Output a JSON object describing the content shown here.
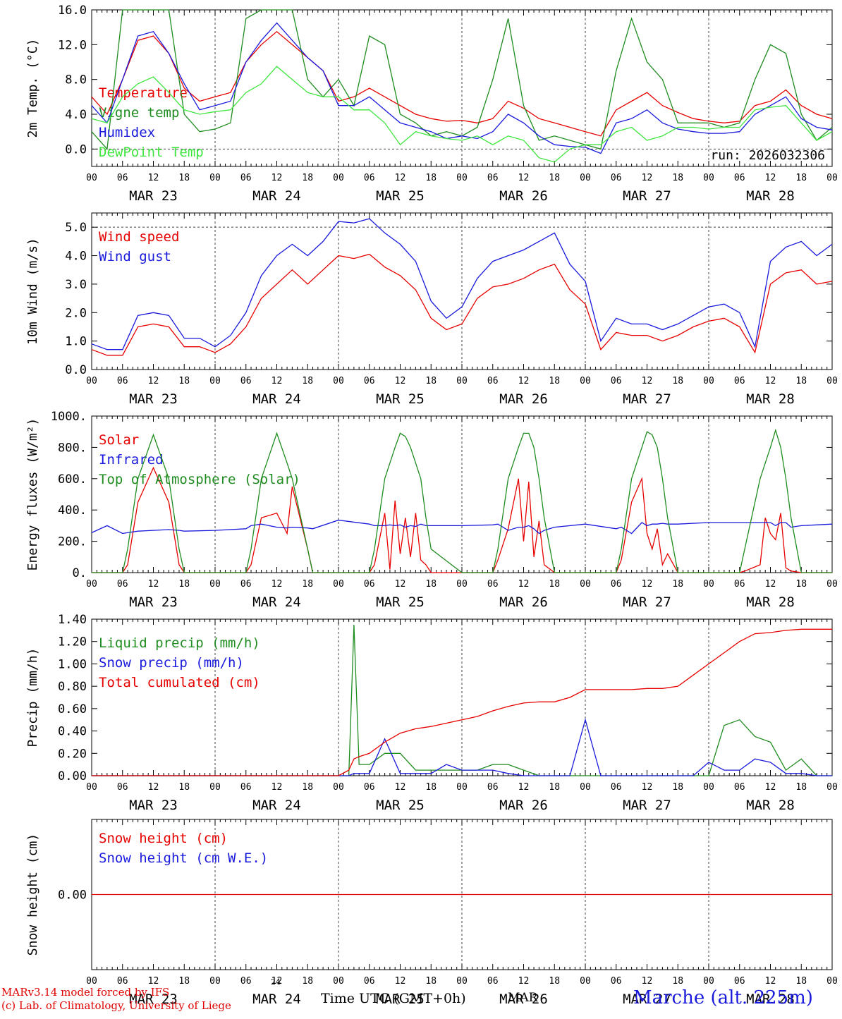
{
  "footer": {
    "model_line": "MARv3.14 model forced by IFS",
    "credit_line": "(c) Lab. of Climatology, University of Liege",
    "time_label": "Time UTC (GMT+0h)",
    "month_label": "MAR",
    "day_label": "24",
    "station_label": "Marche (alt. 225m)"
  },
  "colors": {
    "red": "#e60000",
    "blue": "#1a1adc",
    "green": "#1f8c1f",
    "lightgreen": "#3ee63e",
    "grid": "#444444"
  },
  "x_ticks": [
    "00",
    "06",
    "12",
    "18",
    "00",
    "06",
    "12",
    "18",
    "00",
    "06",
    "12",
    "18",
    "00",
    "06",
    "12",
    "18",
    "00",
    "06",
    "12",
    "18",
    "00",
    "06",
    "12",
    "18",
    "00"
  ],
  "day_labels": [
    "MAR 23",
    "MAR 24",
    "MAR 25",
    "MAR 26",
    "MAR 27",
    "MAR 28"
  ],
  "chart_data": [
    {
      "type": "line",
      "id": "temp",
      "ylabel": "2m Temp. (°C)",
      "ylim": [
        -2,
        16
      ],
      "yticks": [
        "16.0",
        "12.0",
        "8.0",
        "4.0",
        "0.0"
      ],
      "ytick_values": [
        16,
        12,
        8,
        4,
        0
      ],
      "dashed_y": [
        0
      ],
      "annotation": "run: 2026032306",
      "x_hours": [
        0,
        3,
        6,
        9,
        12,
        15,
        18,
        21,
        24,
        27,
        30,
        33,
        36,
        39,
        42,
        45,
        48,
        51,
        54,
        57,
        60,
        63,
        66,
        69,
        72,
        75,
        78,
        81,
        84,
        87,
        90,
        93,
        96,
        99,
        102,
        105,
        108,
        111,
        114,
        117,
        120,
        123,
        126,
        129,
        132,
        135,
        138,
        141,
        144
      ],
      "series": [
        {
          "name": "Temperature",
          "color": "red",
          "values": [
            6,
            4,
            8,
            12.5,
            13,
            11,
            7,
            5.5,
            6,
            6.5,
            10,
            12,
            13.5,
            12,
            10.5,
            9,
            5.5,
            6,
            7,
            6,
            5,
            4,
            3.5,
            3.2,
            3.3,
            3,
            3.5,
            5.5,
            4.7,
            3.5,
            3,
            2.5,
            2,
            1.5,
            4.5,
            5.5,
            6.5,
            5,
            4.2,
            3.5,
            3.2,
            3,
            3.2,
            5,
            5.5,
            6.8,
            5,
            4,
            3.5
          ]
        },
        {
          "name": "Vigne temp",
          "color": "green",
          "values": [
            2,
            0,
            16,
            16,
            16,
            16,
            4,
            2,
            2.3,
            3,
            15,
            16,
            16,
            16,
            8,
            6,
            8,
            5,
            13,
            12,
            4,
            3,
            1.5,
            2,
            1.5,
            2.5,
            8,
            15,
            5,
            1,
            1.5,
            1,
            0.5,
            0,
            9,
            15,
            10,
            8,
            3,
            3,
            3,
            2.5,
            3,
            8,
            12,
            11,
            4,
            1,
            2.5
          ]
        },
        {
          "name": "Humidex",
          "color": "blue",
          "values": [
            5,
            3,
            8,
            13,
            13.5,
            11,
            7.5,
            4.5,
            5,
            5.5,
            10,
            12.5,
            14.5,
            12.5,
            10.5,
            9,
            5,
            5,
            6,
            4.5,
            3,
            2.5,
            2,
            1.2,
            1.5,
            1.2,
            2,
            4,
            3,
            1.5,
            0.5,
            0.3,
            0.2,
            -0.5,
            3,
            3.5,
            4.5,
            3,
            2.3,
            2,
            1.8,
            1.8,
            2,
            4,
            5,
            6,
            3.5,
            2.5,
            2.2
          ]
        },
        {
          "name": "DewPoint Temp",
          "color": "lightgreen",
          "values": [
            3.5,
            3,
            6,
            7.5,
            8.3,
            6.5,
            4.5,
            4,
            4.3,
            4.5,
            6.5,
            7.5,
            9.5,
            8,
            6.5,
            6,
            6,
            4.5,
            4.5,
            3,
            0.5,
            2,
            1.5,
            1.2,
            1,
            1.5,
            0.5,
            1.5,
            1,
            -1,
            -1.5,
            0,
            0.5,
            0.5,
            2,
            2.5,
            1,
            1.5,
            2.5,
            2.5,
            2.3,
            2.5,
            2.5,
            4.5,
            4.8,
            5,
            3,
            1,
            2
          ]
        }
      ]
    },
    {
      "type": "line",
      "id": "wind",
      "ylabel": "10m Wind (m/s)",
      "ylim": [
        0,
        5.5
      ],
      "yticks": [
        "5.0",
        "4.0",
        "3.0",
        "2.0",
        "1.0",
        "0.0"
      ],
      "ytick_values": [
        5,
        4,
        3,
        2,
        1,
        0
      ],
      "dashed_y": [
        5
      ],
      "x_hours": [
        0,
        3,
        6,
        9,
        12,
        15,
        18,
        21,
        24,
        27,
        30,
        33,
        36,
        39,
        42,
        45,
        48,
        51,
        54,
        57,
        60,
        63,
        66,
        69,
        72,
        75,
        78,
        81,
        84,
        87,
        90,
        93,
        96,
        99,
        102,
        105,
        108,
        111,
        114,
        117,
        120,
        123,
        126,
        129,
        132,
        135,
        138,
        141,
        144
      ],
      "series": [
        {
          "name": "Wind speed",
          "color": "red",
          "values": [
            0.7,
            0.5,
            0.5,
            1.5,
            1.6,
            1.5,
            0.8,
            0.8,
            0.6,
            0.9,
            1.5,
            2.5,
            3,
            3.5,
            3,
            3.5,
            4,
            3.9,
            4.05,
            3.6,
            3.3,
            2.8,
            1.8,
            1.4,
            1.6,
            2.5,
            2.9,
            3,
            3.2,
            3.5,
            3.7,
            2.8,
            2.3,
            0.7,
            1.3,
            1.2,
            1.2,
            1,
            1.2,
            1.5,
            1.7,
            1.8,
            1.5,
            0.6,
            3,
            3.4,
            3.5,
            3,
            3.1
          ]
        },
        {
          "name": "Wind gust",
          "color": "blue",
          "values": [
            0.9,
            0.7,
            0.7,
            1.9,
            2,
            1.9,
            1.1,
            1.1,
            0.8,
            1.2,
            2,
            3.3,
            4,
            4.4,
            4,
            4.5,
            5.2,
            5.15,
            5.3,
            4.8,
            4.4,
            3.8,
            2.4,
            1.8,
            2.2,
            3.2,
            3.8,
            4,
            4.2,
            4.5,
            4.8,
            3.7,
            3.1,
            1.0,
            1.8,
            1.6,
            1.6,
            1.4,
            1.6,
            1.9,
            2.2,
            2.3,
            2.0,
            0.8,
            3.8,
            4.3,
            4.5,
            4.0,
            4.4
          ]
        }
      ]
    },
    {
      "type": "line",
      "id": "energy",
      "ylabel": "Energy fluxes (W/m²)",
      "ylim": [
        0,
        1000
      ],
      "yticks": [
        "1000.",
        "800.",
        "600.",
        "400.",
        "200.",
        "0."
      ],
      "ytick_values": [
        1000,
        800,
        600,
        400,
        200,
        0
      ],
      "dashed_y": [],
      "x_hours": [
        0,
        3,
        6,
        7,
        9,
        12,
        15,
        17,
        18,
        24,
        30,
        31,
        33,
        36,
        38,
        39,
        42,
        43,
        48,
        54,
        55,
        57,
        58,
        59,
        60,
        61,
        62,
        63,
        64,
        65,
        66,
        72,
        78,
        79,
        81,
        83,
        84,
        85,
        86,
        87,
        88,
        90,
        96,
        102,
        103,
        105,
        107,
        108,
        109,
        110,
        111,
        112,
        114,
        120,
        126,
        127,
        130,
        131,
        132,
        133,
        134,
        135,
        136,
        138,
        144
      ],
      "series": [
        {
          "name": "Solar",
          "color": "red",
          "values": [
            0,
            0,
            0,
            50,
            450,
            670,
            450,
            50,
            0,
            0,
            0,
            50,
            350,
            380,
            250,
            550,
            150,
            0,
            0,
            0,
            50,
            380,
            20,
            460,
            120,
            350,
            100,
            380,
            80,
            50,
            0,
            0,
            0,
            80,
            280,
            600,
            200,
            580,
            100,
            330,
            50,
            0,
            0,
            0,
            80,
            450,
            600,
            250,
            150,
            280,
            50,
            120,
            0,
            0,
            0,
            10,
            50,
            350,
            250,
            210,
            380,
            30,
            10,
            0,
            0
          ]
        },
        {
          "name": "Infrared",
          "color": "blue",
          "values": [
            255,
            300,
            250,
            255,
            265,
            270,
            275,
            270,
            265,
            270,
            280,
            300,
            310,
            290,
            285,
            290,
            285,
            280,
            335,
            310,
            300,
            300,
            305,
            300,
            305,
            290,
            300,
            295,
            310,
            300,
            300,
            300,
            305,
            310,
            270,
            290,
            290,
            300,
            280,
            250,
            270,
            290,
            310,
            280,
            290,
            250,
            320,
            300,
            310,
            310,
            315,
            310,
            310,
            320,
            320,
            320,
            320,
            320,
            320,
            300,
            320,
            320,
            290,
            300,
            310
          ]
        },
        {
          "name": "Top of Atmosphere (Solar)",
          "color": "green",
          "values": [
            0,
            0,
            0,
            150,
            600,
            880,
            600,
            150,
            0,
            0,
            0,
            150,
            600,
            890,
            700,
            600,
            150,
            0,
            0,
            0,
            150,
            600,
            700,
            800,
            890,
            870,
            800,
            700,
            600,
            350,
            150,
            0,
            0,
            150,
            600,
            800,
            890,
            890,
            800,
            600,
            350,
            0,
            0,
            0,
            150,
            600,
            800,
            900,
            880,
            800,
            600,
            350,
            0,
            0,
            0,
            150,
            600,
            700,
            800,
            910,
            800,
            600,
            350,
            0,
            0
          ]
        }
      ]
    },
    {
      "type": "line",
      "id": "precip",
      "ylabel": "Precip (mm/h)",
      "ylim": [
        0,
        1.4
      ],
      "yticks": [
        "1.40",
        "1.20",
        "1.00",
        "0.80",
        "0.60",
        "0.40",
        "0.20",
        "0.00"
      ],
      "ytick_values": [
        1.4,
        1.2,
        1.0,
        0.8,
        0.6,
        0.4,
        0.2,
        0.0
      ],
      "dashed_y": [],
      "x_hours": [
        0,
        3,
        6,
        9,
        12,
        15,
        18,
        21,
        24,
        27,
        30,
        33,
        36,
        39,
        42,
        45,
        46,
        48,
        50,
        51,
        52,
        54,
        57,
        60,
        63,
        66,
        69,
        72,
        75,
        78,
        81,
        84,
        87,
        90,
        93,
        96,
        99,
        102,
        105,
        108,
        111,
        114,
        117,
        120,
        123,
        126,
        129,
        132,
        135,
        138,
        141,
        144
      ],
      "series": [
        {
          "name": "Liquid precip (mm/h)",
          "color": "green",
          "values": [
            0,
            0,
            0,
            0,
            0,
            0,
            0,
            0,
            0,
            0,
            0,
            0,
            0,
            0,
            0,
            0,
            0,
            0,
            0,
            1.35,
            0.1,
            0.1,
            0.2,
            0.2,
            0.05,
            0.05,
            0.05,
            0.05,
            0.05,
            0.1,
            0.1,
            0.05,
            0,
            0,
            0,
            0,
            0,
            0,
            0,
            0,
            0,
            0,
            0,
            0,
            0.45,
            0.5,
            0.35,
            0.3,
            0.05,
            0.15,
            0,
            0
          ]
        },
        {
          "name": "Snow precip (mm/h)",
          "color": "blue",
          "values": [
            0,
            0,
            0,
            0,
            0,
            0,
            0,
            0,
            0,
            0,
            0,
            0,
            0,
            0,
            0,
            0,
            0,
            0,
            0,
            0.02,
            0.02,
            0.02,
            0.33,
            0.02,
            0.02,
            0.02,
            0.1,
            0.05,
            0.05,
            0.05,
            0.02,
            0,
            0,
            0,
            0,
            0.5,
            0,
            0,
            0,
            0,
            0,
            0,
            0,
            0.12,
            0.05,
            0.05,
            0.15,
            0.12,
            0.02,
            0.02,
            0,
            0
          ]
        },
        {
          "name": "Total cumulated (cm)",
          "color": "red",
          "values": [
            0,
            0,
            0,
            0,
            0,
            0,
            0,
            0,
            0,
            0,
            0,
            0,
            0,
            0,
            0,
            0,
            0,
            0,
            0.05,
            0.15,
            0.17,
            0.2,
            0.3,
            0.38,
            0.42,
            0.44,
            0.47,
            0.5,
            0.53,
            0.58,
            0.62,
            0.65,
            0.66,
            0.66,
            0.7,
            0.77,
            0.77,
            0.77,
            0.77,
            0.78,
            0.78,
            0.8,
            0.9,
            1.0,
            1.1,
            1.2,
            1.27,
            1.28,
            1.3,
            1.31,
            1.31,
            1.31
          ]
        }
      ]
    },
    {
      "type": "line",
      "id": "snow",
      "ylabel": "Snow height (cm)",
      "ylim": [
        -1,
        1
      ],
      "yticks": [
        "0.00"
      ],
      "ytick_values": [
        0
      ],
      "dashed_y": [],
      "x_hours": [
        0,
        144
      ],
      "series": [
        {
          "name": "Snow height (cm)",
          "color": "red",
          "values": [
            0,
            0
          ]
        },
        {
          "name": "Snow height (cm W.E.)",
          "color": "blue",
          "values": []
        }
      ]
    }
  ]
}
